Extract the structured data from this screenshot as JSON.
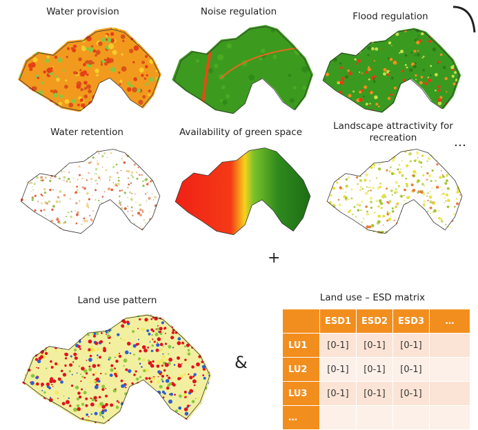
{
  "maps": [
    {
      "id": "water-provision",
      "label": "Water provision",
      "palette": "orange"
    },
    {
      "id": "noise-regulation",
      "label": "Noise regulation",
      "palette": "green-noise"
    },
    {
      "id": "flood-regulation",
      "label": "Flood regulation",
      "palette": "green-flood"
    },
    {
      "id": "water-retention",
      "label": "Water retention",
      "palette": "white-speckle"
    },
    {
      "id": "green-space",
      "label": "Availability of green space",
      "palette": "red-green"
    },
    {
      "id": "landscape-attractivity",
      "label": "Landscape attractivity for recreation",
      "palette": "white-yellow"
    }
  ],
  "more_maps": "…",
  "plus": "+",
  "land_use": {
    "label": "Land use pattern",
    "palette": "land-use"
  },
  "ampersand": "&",
  "matrix": {
    "title": "Land use – ESD matrix",
    "columns": [
      "ESD1",
      "ESD2",
      "ESD3",
      "…"
    ],
    "rows": [
      {
        "label": "LU1",
        "cells": [
          "[0-1]",
          "[0-1]",
          "[0-1]",
          ""
        ]
      },
      {
        "label": "LU2",
        "cells": [
          "[0-1]",
          "[0-1]",
          "[0-1]",
          ""
        ]
      },
      {
        "label": "LU3",
        "cells": [
          "[0-1]",
          "[0-1]",
          "[0-1]",
          ""
        ]
      },
      {
        "label": "…",
        "cells": [
          "",
          "",
          "",
          ""
        ]
      }
    ]
  }
}
